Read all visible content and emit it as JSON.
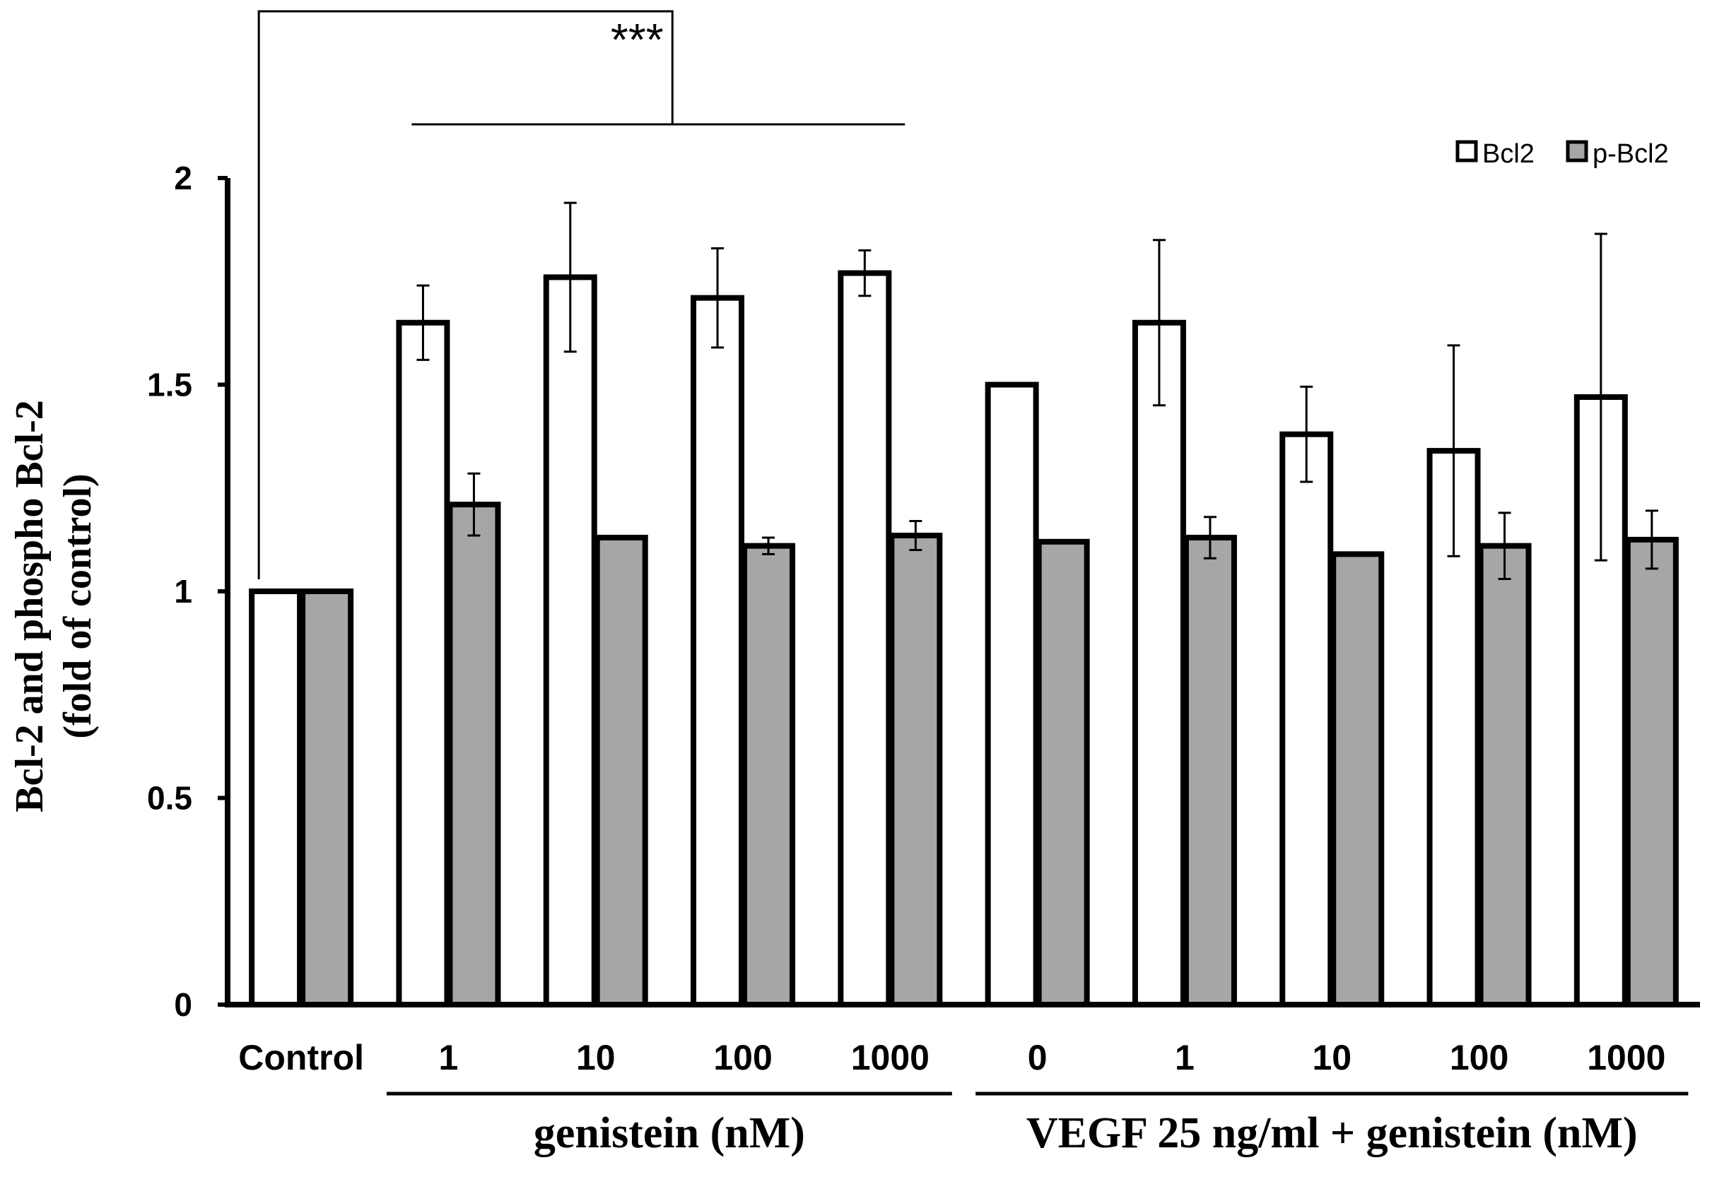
{
  "chart_data": {
    "type": "bar",
    "title": "",
    "xlabel": "",
    "ylabel": {
      "line1": "Bcl-2 and phospho Bcl-2",
      "line2": "(fold of control)"
    },
    "ylim": [
      0,
      2
    ],
    "yticks": [
      "0",
      "0.5",
      "1",
      "1.5",
      "2"
    ],
    "grid": false,
    "legend_position": "top-right",
    "categories": [
      "Control",
      "1",
      "10",
      "100",
      "1000",
      "0",
      "1",
      "10",
      "100",
      "1000"
    ],
    "groups": [
      {
        "label": "genistein (nM)",
        "from": 1,
        "to": 4
      },
      {
        "label": "VEGF 25 ng/ml + genistein (nM)",
        "from": 5,
        "to": 9
      }
    ],
    "series": [
      {
        "name": "Bcl2",
        "color": "#ffffff",
        "values": [
          1.0,
          1.65,
          1.76,
          1.71,
          1.77,
          1.5,
          1.65,
          1.38,
          1.34,
          1.47
        ],
        "errors": [
          0,
          0.09,
          0.18,
          0.12,
          0.055,
          0,
          0.2,
          0.115,
          0.255,
          0.395
        ]
      },
      {
        "name": "p-Bcl2",
        "color": "#a6a6a6",
        "values": [
          1.0,
          1.21,
          1.13,
          1.11,
          1.135,
          1.12,
          1.13,
          1.09,
          1.11,
          1.125
        ],
        "errors": [
          0,
          0.075,
          0,
          0.02,
          0.035,
          0,
          0.05,
          0,
          0.08,
          0.07
        ]
      }
    ],
    "significance": {
      "label": "***",
      "compare_from": 0,
      "compare_to_range": [
        1,
        4
      ]
    }
  }
}
